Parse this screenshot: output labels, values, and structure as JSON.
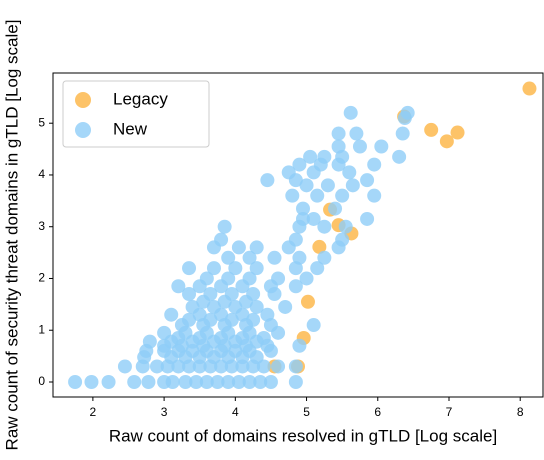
{
  "chart_data": {
    "type": "scatter",
    "xlabel": "Raw count of domains resolved in gTLD [Log scale]",
    "ylabel": "Raw count of security threat domains in gTLD [Log scale]",
    "xlim": [
      1.44,
      8.32
    ],
    "ylim": [
      -0.29,
      5.97
    ],
    "xticks": [
      2,
      3,
      4,
      5,
      6,
      7,
      8
    ],
    "yticks": [
      0,
      1,
      2,
      3,
      4,
      5
    ],
    "legend": "upper left",
    "series": [
      {
        "name": "Legacy",
        "color": "#fdb442",
        "x": [
          8.13,
          6.37,
          6.75,
          7.12,
          6.97,
          5.45,
          5.63,
          5.18,
          5.02,
          4.96,
          4.55,
          4.88,
          5.33
        ],
        "values": [
          5.67,
          5.13,
          4.87,
          4.82,
          4.65,
          3.03,
          2.87,
          2.61,
          1.55,
          0.85,
          0.3,
          0.3,
          3.33
        ]
      },
      {
        "name": "New",
        "color": "#8fcdf7",
        "x": [
          1.75,
          1.98,
          2.22,
          2.58,
          2.78,
          3.0,
          3.12,
          3.3,
          3.45,
          3.6,
          3.75,
          3.9,
          4.05,
          4.2,
          4.35,
          4.5,
          4.85,
          2.45,
          2.7,
          2.9,
          3.05,
          3.2,
          3.35,
          3.5,
          3.65,
          3.8,
          3.95,
          4.1,
          4.25,
          4.4,
          4.6,
          4.85,
          2.72,
          3.1,
          3.3,
          3.5,
          3.7,
          3.9,
          4.1,
          4.3,
          2.75,
          3.0,
          3.2,
          3.4,
          3.6,
          3.8,
          4.0,
          4.2,
          4.5,
          3.0,
          3.25,
          3.55,
          3.85,
          4.15,
          4.45,
          4.9,
          2.8,
          3.1,
          3.4,
          3.7,
          4.0,
          4.3,
          3.2,
          3.5,
          3.8,
          4.1,
          4.4,
          3.0,
          3.3,
          3.6,
          3.9,
          4.2,
          4.6,
          3.25,
          3.55,
          3.85,
          4.15,
          4.5,
          5.1,
          3.35,
          3.65,
          3.95,
          4.25,
          3.1,
          3.5,
          3.8,
          4.1,
          4.45,
          3.4,
          3.7,
          4.0,
          4.3,
          4.7,
          3.55,
          3.85,
          4.15,
          3.35,
          3.65,
          3.95,
          4.25,
          4.55,
          3.2,
          3.5,
          3.8,
          4.1,
          4.5,
          4.85,
          3.6,
          3.9,
          4.2,
          4.6,
          5.0,
          3.35,
          3.7,
          4.0,
          4.3,
          4.85,
          5.15,
          3.9,
          4.2,
          4.55,
          4.9,
          5.25,
          3.7,
          4.05,
          4.3,
          4.75,
          5.45,
          3.8,
          4.85,
          5.5,
          3.85,
          4.9,
          5.25,
          5.55,
          4.95,
          5.1,
          5.85,
          4.95,
          5.4,
          4.8,
          5.15,
          5.5,
          5.95,
          5.0,
          5.3,
          5.65,
          4.45,
          4.85,
          5.85,
          4.75,
          5.1,
          5.6,
          4.9,
          5.2,
          5.45,
          5.95,
          5.05,
          5.25,
          5.5,
          6.3,
          5.45,
          5.75,
          6.05,
          5.45,
          5.7,
          6.35,
          6.38,
          5.62,
          6.42
        ],
        "values": [
          0,
          0,
          0,
          0,
          0,
          0,
          0,
          0,
          0,
          0,
          0,
          0,
          0,
          0,
          0,
          0,
          0,
          0.3,
          0.3,
          0.3,
          0.3,
          0.3,
          0.3,
          0.3,
          0.3,
          0.3,
          0.3,
          0.3,
          0.3,
          0.3,
          0.3,
          0.3,
          0.48,
          0.48,
          0.48,
          0.48,
          0.48,
          0.48,
          0.48,
          0.48,
          0.6,
          0.6,
          0.6,
          0.6,
          0.6,
          0.6,
          0.6,
          0.6,
          0.6,
          0.7,
          0.7,
          0.7,
          0.7,
          0.7,
          0.7,
          0.7,
          0.78,
          0.78,
          0.78,
          0.78,
          0.78,
          0.78,
          0.85,
          0.85,
          0.85,
          0.85,
          0.85,
          0.95,
          0.95,
          0.95,
          0.95,
          0.95,
          0.95,
          1.1,
          1.1,
          1.1,
          1.1,
          1.1,
          1.1,
          1.2,
          1.2,
          1.2,
          1.2,
          1.3,
          1.3,
          1.3,
          1.3,
          1.3,
          1.45,
          1.45,
          1.45,
          1.45,
          1.45,
          1.55,
          1.55,
          1.55,
          1.7,
          1.7,
          1.7,
          1.7,
          1.7,
          1.85,
          1.85,
          1.85,
          1.85,
          1.85,
          1.85,
          2.0,
          2.0,
          2.0,
          2.0,
          2.0,
          2.2,
          2.2,
          2.2,
          2.2,
          2.2,
          2.2,
          2.4,
          2.4,
          2.4,
          2.4,
          2.4,
          2.6,
          2.6,
          2.6,
          2.6,
          2.6,
          2.75,
          2.75,
          2.75,
          3.0,
          3.0,
          3.0,
          3.0,
          3.15,
          3.15,
          3.15,
          3.35,
          3.35,
          3.6,
          3.6,
          3.6,
          3.6,
          3.8,
          3.8,
          3.8,
          3.9,
          3.9,
          3.9,
          4.05,
          4.05,
          4.05,
          4.2,
          4.2,
          4.2,
          4.2,
          4.35,
          4.35,
          4.35,
          4.35,
          4.55,
          4.55,
          4.55,
          4.8,
          4.8,
          4.8,
          5.1,
          5.2,
          5.2
        ]
      }
    ]
  }
}
